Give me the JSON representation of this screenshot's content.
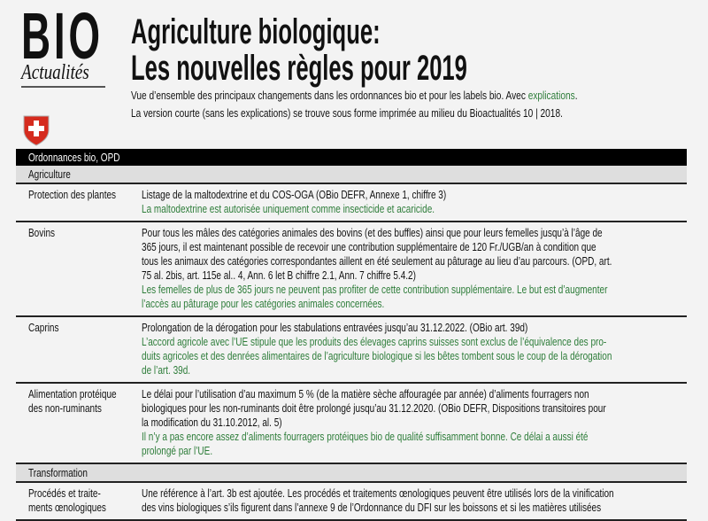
{
  "logo": {
    "bio": "BIO",
    "actualites": "Actualités"
  },
  "title": {
    "line1": "Agriculture biologique:",
    "line2": "Les nouvelles règles pour 2019"
  },
  "intro": {
    "line1_text": "Vue d’ensemble des principaux changements dans les ordonnances bio et pour les labels bio. Avec ",
    "line1_link": "explications",
    "line1_end": ".",
    "line2": "La version courte (sans les explications) se trouve sous forme imprimée au milieu du Bioactualités 10 | 2018."
  },
  "colors": {
    "accent_green": "#2e7d3a",
    "header": "#000000",
    "section": "#dedede",
    "shield_red": "#d52b1e"
  },
  "table": {
    "header": "Ordonnances bio, OPD",
    "sections": [
      {
        "title": "Agriculture",
        "rows": [
          {
            "label": [
              "Protection des plantes"
            ],
            "text": [
              "Listage de la maltodextrine et du COS-OGA (OBio DEFR, Annexe 1, chiffre 3)"
            ],
            "note": [
              "La maltodextrine est autorisée uniquement comme insecticide et acaricide."
            ]
          },
          {
            "label": [
              "Bovins"
            ],
            "text": [
              "Pour tous les mâles des catégories animales des bovins (et des buffles) ainsi que pour leurs femelles jusqu’à l’âge de",
              "365 jours, il est maintenant possible de recevoir une contribution supplémentaire de 120 Fr./UGB/an à condition que",
              "tous les animaux des catégories correspondantes aillent en été seulement au pâturage au lieu d’au parcours. (OPD, art.",
              "75 al. 2bis, art. 115e al.. 4, Ann. 6 let B chiffre 2.1, Ann. 7 chiffre 5.4.2)"
            ],
            "note": [
              "Les femelles de plus de 365 jours ne peuvent pas profiter de cette contribution supplémentaire. Le but est d’augmenter",
              "l’accès au pâturage pour les catégories animales concernées."
            ]
          },
          {
            "label": [
              "Caprins"
            ],
            "text": [
              "Prolongation de la dérogation pour les stabulations entravées jusqu’au 31.12.2022. (OBio art. 39d)"
            ],
            "note": [
              "L’accord agricole avec l’UE stipule que les produits des élevages caprins suisses sont exclus de l’équivalence des pro-",
              "duits agricoles et des denrées alimentaires de l’agriculture biologique si les bêtes tombent sous le coup de la dérogation",
              "de l’art. 39d."
            ]
          },
          {
            "label": [
              "Alimentation protéique",
              "des non-ruminants"
            ],
            "text": [
              "Le délai pour l’utilisation d’au maximum 5 % (de la matière sèche affouragée par année) d’aliments fourragers non",
              "biologiques pour les non-ruminants doit être prolongé jusqu’au 31.12.2020. (OBio DEFR, Dispositions transitoires pour",
              "la modification du 31.10.2012, al. 5)"
            ],
            "note": [
              "Il n’y a pas encore assez d’aliments fourragers protéiques bio de qualité suffisamment bonne. Ce délai a aussi été",
              "prolongé par l’UE."
            ]
          }
        ]
      },
      {
        "title": "Transformation",
        "rows": [
          {
            "label": [
              "Procédés et traite-",
              "ments œnologiques"
            ],
            "text": [
              "Une référence à l’art. 3b est ajoutée. Les procédés et traitements œnologiques peuvent être utilisés lors de la vinification",
              "des vins biologiques s’ils figurent dans l’annexe 9 de l’Ordonnance du DFI sur les boissons et si les matières utilisées"
            ],
            "note": []
          }
        ]
      }
    ]
  }
}
